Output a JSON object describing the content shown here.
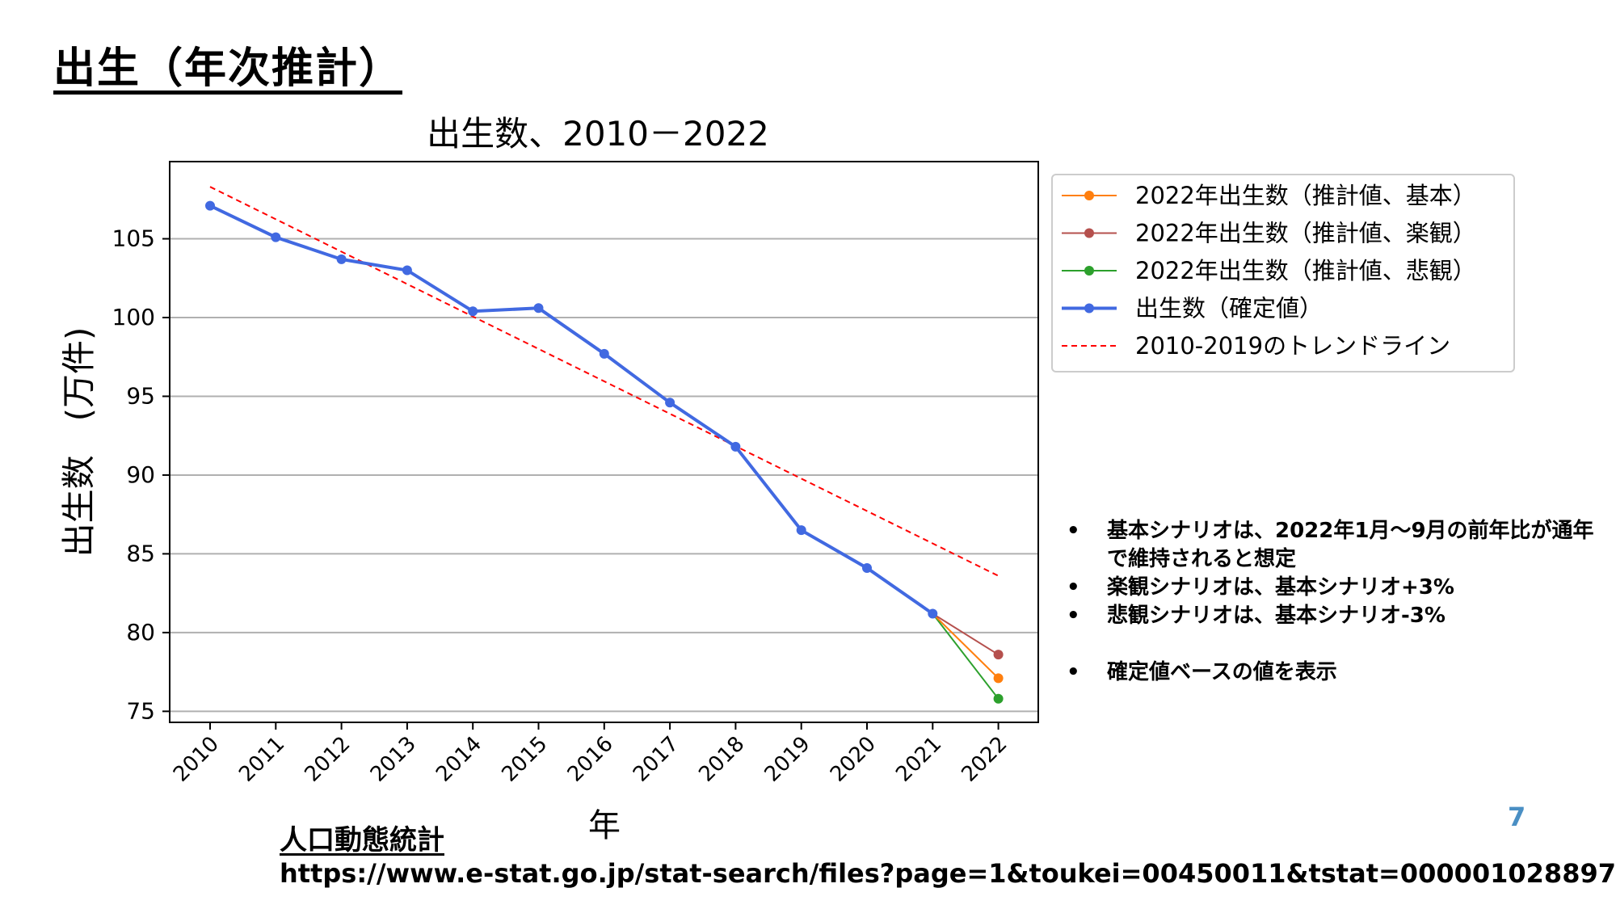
{
  "slide": {
    "title": "出生（年次推計）",
    "page_number": "7"
  },
  "chart_data": {
    "type": "line",
    "title": "出生数、2010－2022",
    "xlabel": "年",
    "ylabel": "出生数　(万件)",
    "x": [
      "2010",
      "2011",
      "2012",
      "2013",
      "2014",
      "2015",
      "2016",
      "2017",
      "2018",
      "2019",
      "2020",
      "2021",
      "2022"
    ],
    "ylim": [
      74.3,
      109.9
    ],
    "yticks": [
      75,
      80,
      85,
      90,
      95,
      100,
      105
    ],
    "grid": "horizontal",
    "legend_position": "outside-right-top",
    "series": [
      {
        "name": "2022年出生数（推計値、基本）",
        "color": "#ff7f0e",
        "x": [
          "2021",
          "2022"
        ],
        "values": [
          81.2,
          77.1
        ],
        "style": "line-marker"
      },
      {
        "name": "2022年出生数（推計値、楽観）",
        "color": "#b5504d",
        "x": [
          "2021",
          "2022"
        ],
        "values": [
          81.2,
          78.6
        ],
        "style": "line-marker"
      },
      {
        "name": "2022年出生数（推計値、悲観）",
        "color": "#2ca02c",
        "x": [
          "2021",
          "2022"
        ],
        "values": [
          81.2,
          75.8
        ],
        "style": "line-marker"
      },
      {
        "name": "出生数（確定値）",
        "color": "#4169e1",
        "x": [
          "2010",
          "2011",
          "2012",
          "2013",
          "2014",
          "2015",
          "2016",
          "2017",
          "2018",
          "2019",
          "2020",
          "2021"
        ],
        "values": [
          107.1,
          105.1,
          103.7,
          103.0,
          100.4,
          100.6,
          97.7,
          94.6,
          91.8,
          86.5,
          84.1,
          81.2
        ],
        "style": "thick-line-marker"
      },
      {
        "name": "2010-2019のトレンドライン",
        "color": "#ff0000",
        "x": [
          "2010",
          "2022"
        ],
        "values": [
          108.3,
          83.6
        ],
        "style": "dashed"
      }
    ]
  },
  "notes": [
    "基本シナリオは、2022年1月～9月の前年比が通年で維持されると想定",
    "楽観シナリオは、基本シナリオ+3%",
    "悲観シナリオは、基本シナリオ-3%",
    "確定値ベースの値を表示"
  ],
  "source": {
    "title": "人口動態統計",
    "url": "https://www.e-stat.go.jp/stat-search/files?page=1&toukei=00450011&tstat=000001028897"
  }
}
